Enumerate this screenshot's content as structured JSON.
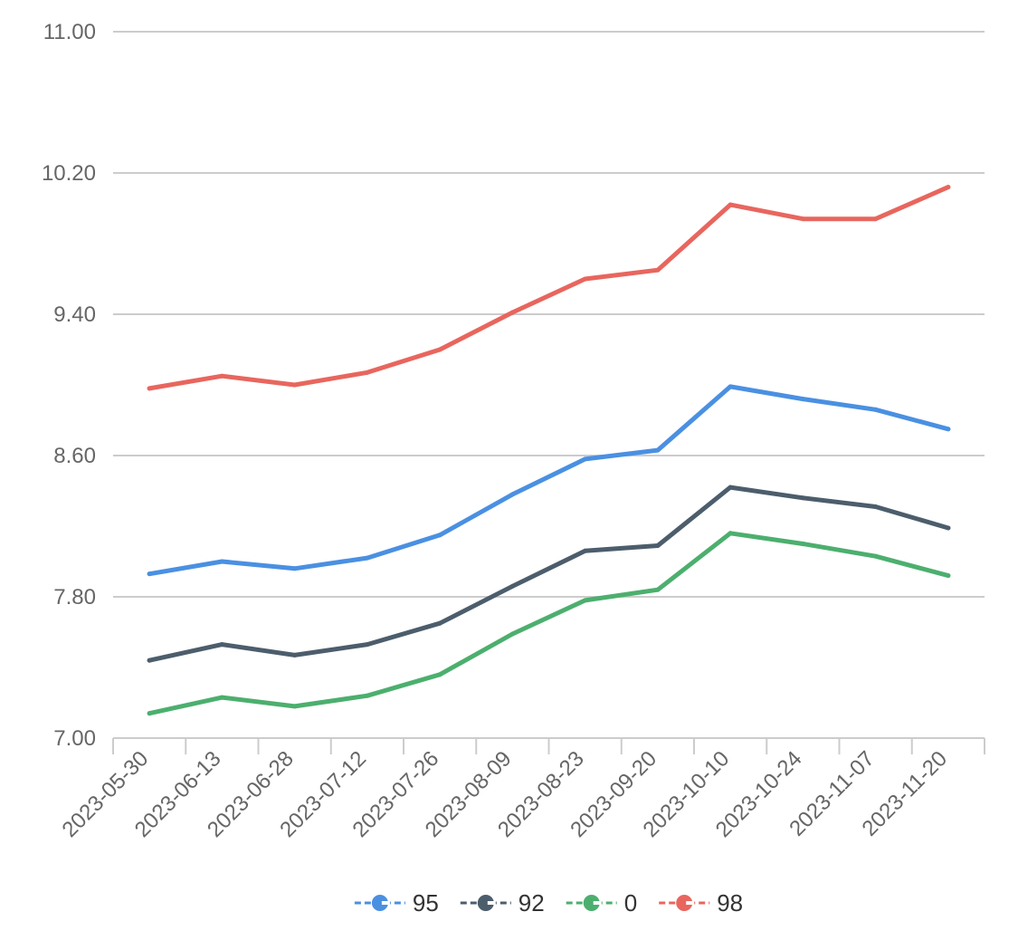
{
  "chart_data": {
    "type": "line",
    "categories": [
      "2023-05-30",
      "2023-06-13",
      "2023-06-28",
      "2023-07-12",
      "2023-07-26",
      "2023-08-09",
      "2023-08-23",
      "2023-09-20",
      "2023-10-10",
      "2023-10-24",
      "2023-11-07",
      "2023-11-20"
    ],
    "series": [
      {
        "name": "95",
        "color": "#4a90e2",
        "values": [
          7.93,
          8.0,
          7.96,
          8.02,
          8.15,
          8.38,
          8.58,
          8.63,
          8.99,
          8.92,
          8.86,
          8.75
        ]
      },
      {
        "name": "92",
        "color": "#4c5d6c",
        "values": [
          7.44,
          7.53,
          7.47,
          7.53,
          7.65,
          7.86,
          8.06,
          8.09,
          8.42,
          8.36,
          8.31,
          8.19
        ]
      },
      {
        "name": "0",
        "color": "#4caf6e",
        "values": [
          7.14,
          7.23,
          7.18,
          7.24,
          7.36,
          7.59,
          7.78,
          7.84,
          8.16,
          8.1,
          8.03,
          7.92
        ]
      },
      {
        "name": "98",
        "color": "#e8665e",
        "values": [
          8.98,
          9.05,
          9.0,
          9.07,
          9.2,
          9.41,
          9.6,
          9.65,
          10.02,
          9.94,
          9.94,
          10.12
        ]
      }
    ],
    "yticks": [
      "7.00",
      "7.80",
      "8.60",
      "9.40",
      "10.20",
      "11.00"
    ],
    "ylim": [
      7.0,
      11.0
    ],
    "grid": true,
    "legend": "bottom"
  }
}
